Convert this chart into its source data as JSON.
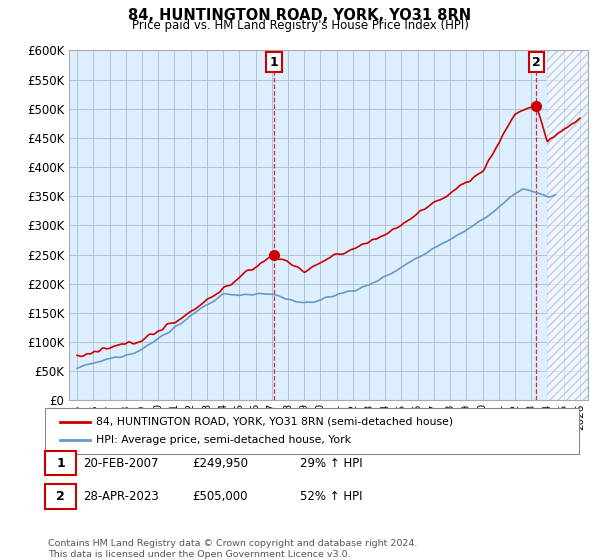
{
  "title": "84, HUNTINGTON ROAD, YORK, YO31 8RN",
  "subtitle": "Price paid vs. HM Land Registry's House Price Index (HPI)",
  "legend_line1": "84, HUNTINGTON ROAD, YORK, YO31 8RN (semi-detached house)",
  "legend_line2": "HPI: Average price, semi-detached house, York",
  "annotation1_label": "1",
  "annotation1_date": "20-FEB-2007",
  "annotation1_price": "£249,950",
  "annotation1_hpi": "29% ↑ HPI",
  "annotation2_label": "2",
  "annotation2_date": "28-APR-2023",
  "annotation2_price": "£505,000",
  "annotation2_hpi": "52% ↑ HPI",
  "footer": "Contains HM Land Registry data © Crown copyright and database right 2024.\nThis data is licensed under the Open Government Licence v3.0.",
  "red_color": "#cc0000",
  "blue_color": "#6699cc",
  "background_color": "#ffffff",
  "chart_bg_color": "#ddeeff",
  "grid_color": "#aabbcc",
  "ylim": [
    0,
    600000
  ],
  "yticks": [
    0,
    50000,
    100000,
    150000,
    200000,
    250000,
    300000,
    350000,
    400000,
    450000,
    500000,
    550000,
    600000
  ],
  "point1_x": 2007.13,
  "point1_y": 249950,
  "point2_x": 2023.32,
  "point2_y": 505000,
  "hatch_start_x": 2024.0,
  "xmin": 1995,
  "xmax": 2026
}
